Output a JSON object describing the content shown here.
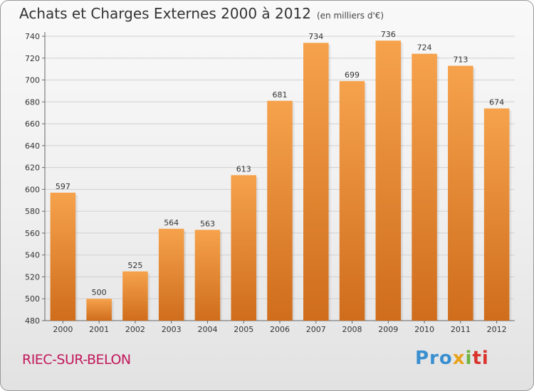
{
  "title": "Achats et Charges Externes 2000 à 2012",
  "unit_note": "(en milliers d'€)",
  "commune": "RIEC-SUR-BELON",
  "brand": {
    "name": "Proxiti",
    "parts": [
      "Pro",
      "x",
      "i",
      "ti"
    ]
  },
  "colors": {
    "bar_light": "#f6a24c",
    "bar_dark": "#cf6d1c",
    "commune": "#c2185b"
  },
  "chart_data": {
    "type": "bar",
    "categories": [
      "2000",
      "2001",
      "2002",
      "2003",
      "2004",
      "2005",
      "2006",
      "2007",
      "2008",
      "2009",
      "2010",
      "2011",
      "2012"
    ],
    "values": [
      597,
      500,
      525,
      564,
      563,
      613,
      681,
      734,
      699,
      736,
      724,
      713,
      674
    ],
    "value_labels": [
      "597",
      "500",
      "525",
      "564",
      "563",
      "613",
      "681",
      "734",
      "699",
      "736",
      "724",
      "713",
      "674"
    ],
    "ylim": [
      480,
      740
    ],
    "yticks": [
      480,
      500,
      520,
      540,
      560,
      580,
      600,
      620,
      640,
      660,
      680,
      700,
      720,
      740
    ],
    "grid": true,
    "legend": "none"
  }
}
